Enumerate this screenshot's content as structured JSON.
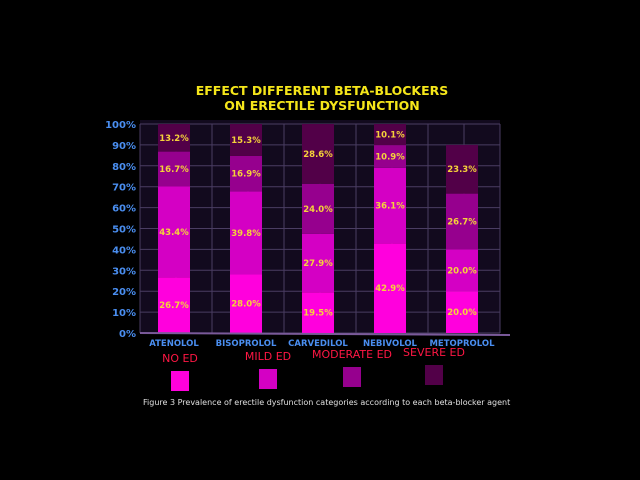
{
  "chart_data": {
    "type": "bar",
    "stacked": true,
    "title": [
      "EFFECT DIFFERENT BETA-BLOCKERS",
      "ON ERECTILE DYSFUNCTION"
    ],
    "categories": [
      "ATENOLOL",
      "BISOPROLOL",
      "CARVEDILOL",
      "NEBIVOLOL",
      "METOPROLOL"
    ],
    "series": [
      {
        "name": "NO ED",
        "color": "#ff00dd",
        "values": [
          26.7,
          28.0,
          19.5,
          42.9,
          20.0
        ]
      },
      {
        "name": "MILD ED",
        "color": "#d400c4",
        "values": [
          43.4,
          39.8,
          27.9,
          36.1,
          20.0
        ]
      },
      {
        "name": "MODERATE ED",
        "color": "#96008e",
        "values": [
          16.7,
          16.9,
          24.0,
          10.9,
          26.7
        ]
      },
      {
        "name": "SEVERE ED",
        "color": "#520048",
        "values": [
          13.2,
          15.3,
          28.6,
          10.1,
          23.3
        ]
      }
    ],
    "data_labels": [
      [
        "26.7%",
        "28.0%",
        "19.5%",
        "42.9%",
        "20.0%"
      ],
      [
        "43.4%",
        "39.8%",
        "27.9%",
        "36.1%",
        "20.0%"
      ],
      [
        "16.7%",
        "16.9%",
        "24.0%",
        "10.9%",
        "26.7%"
      ],
      [
        "13.2%",
        "15.3%",
        "28.6%",
        "10.1%",
        "23.3%"
      ]
    ],
    "yticks": [
      "0%",
      "10%",
      "20%",
      "30%",
      "40%",
      "50%",
      "60%",
      "70%",
      "80%",
      "90%",
      "100%"
    ],
    "ylim": [
      0,
      100
    ],
    "xlabel": "",
    "ylabel": "",
    "grid": true,
    "legend_placement": "bottom",
    "caption": "Figure 3 Prevalence of erectile dysfunction categories according to each beta-blocker agent"
  }
}
